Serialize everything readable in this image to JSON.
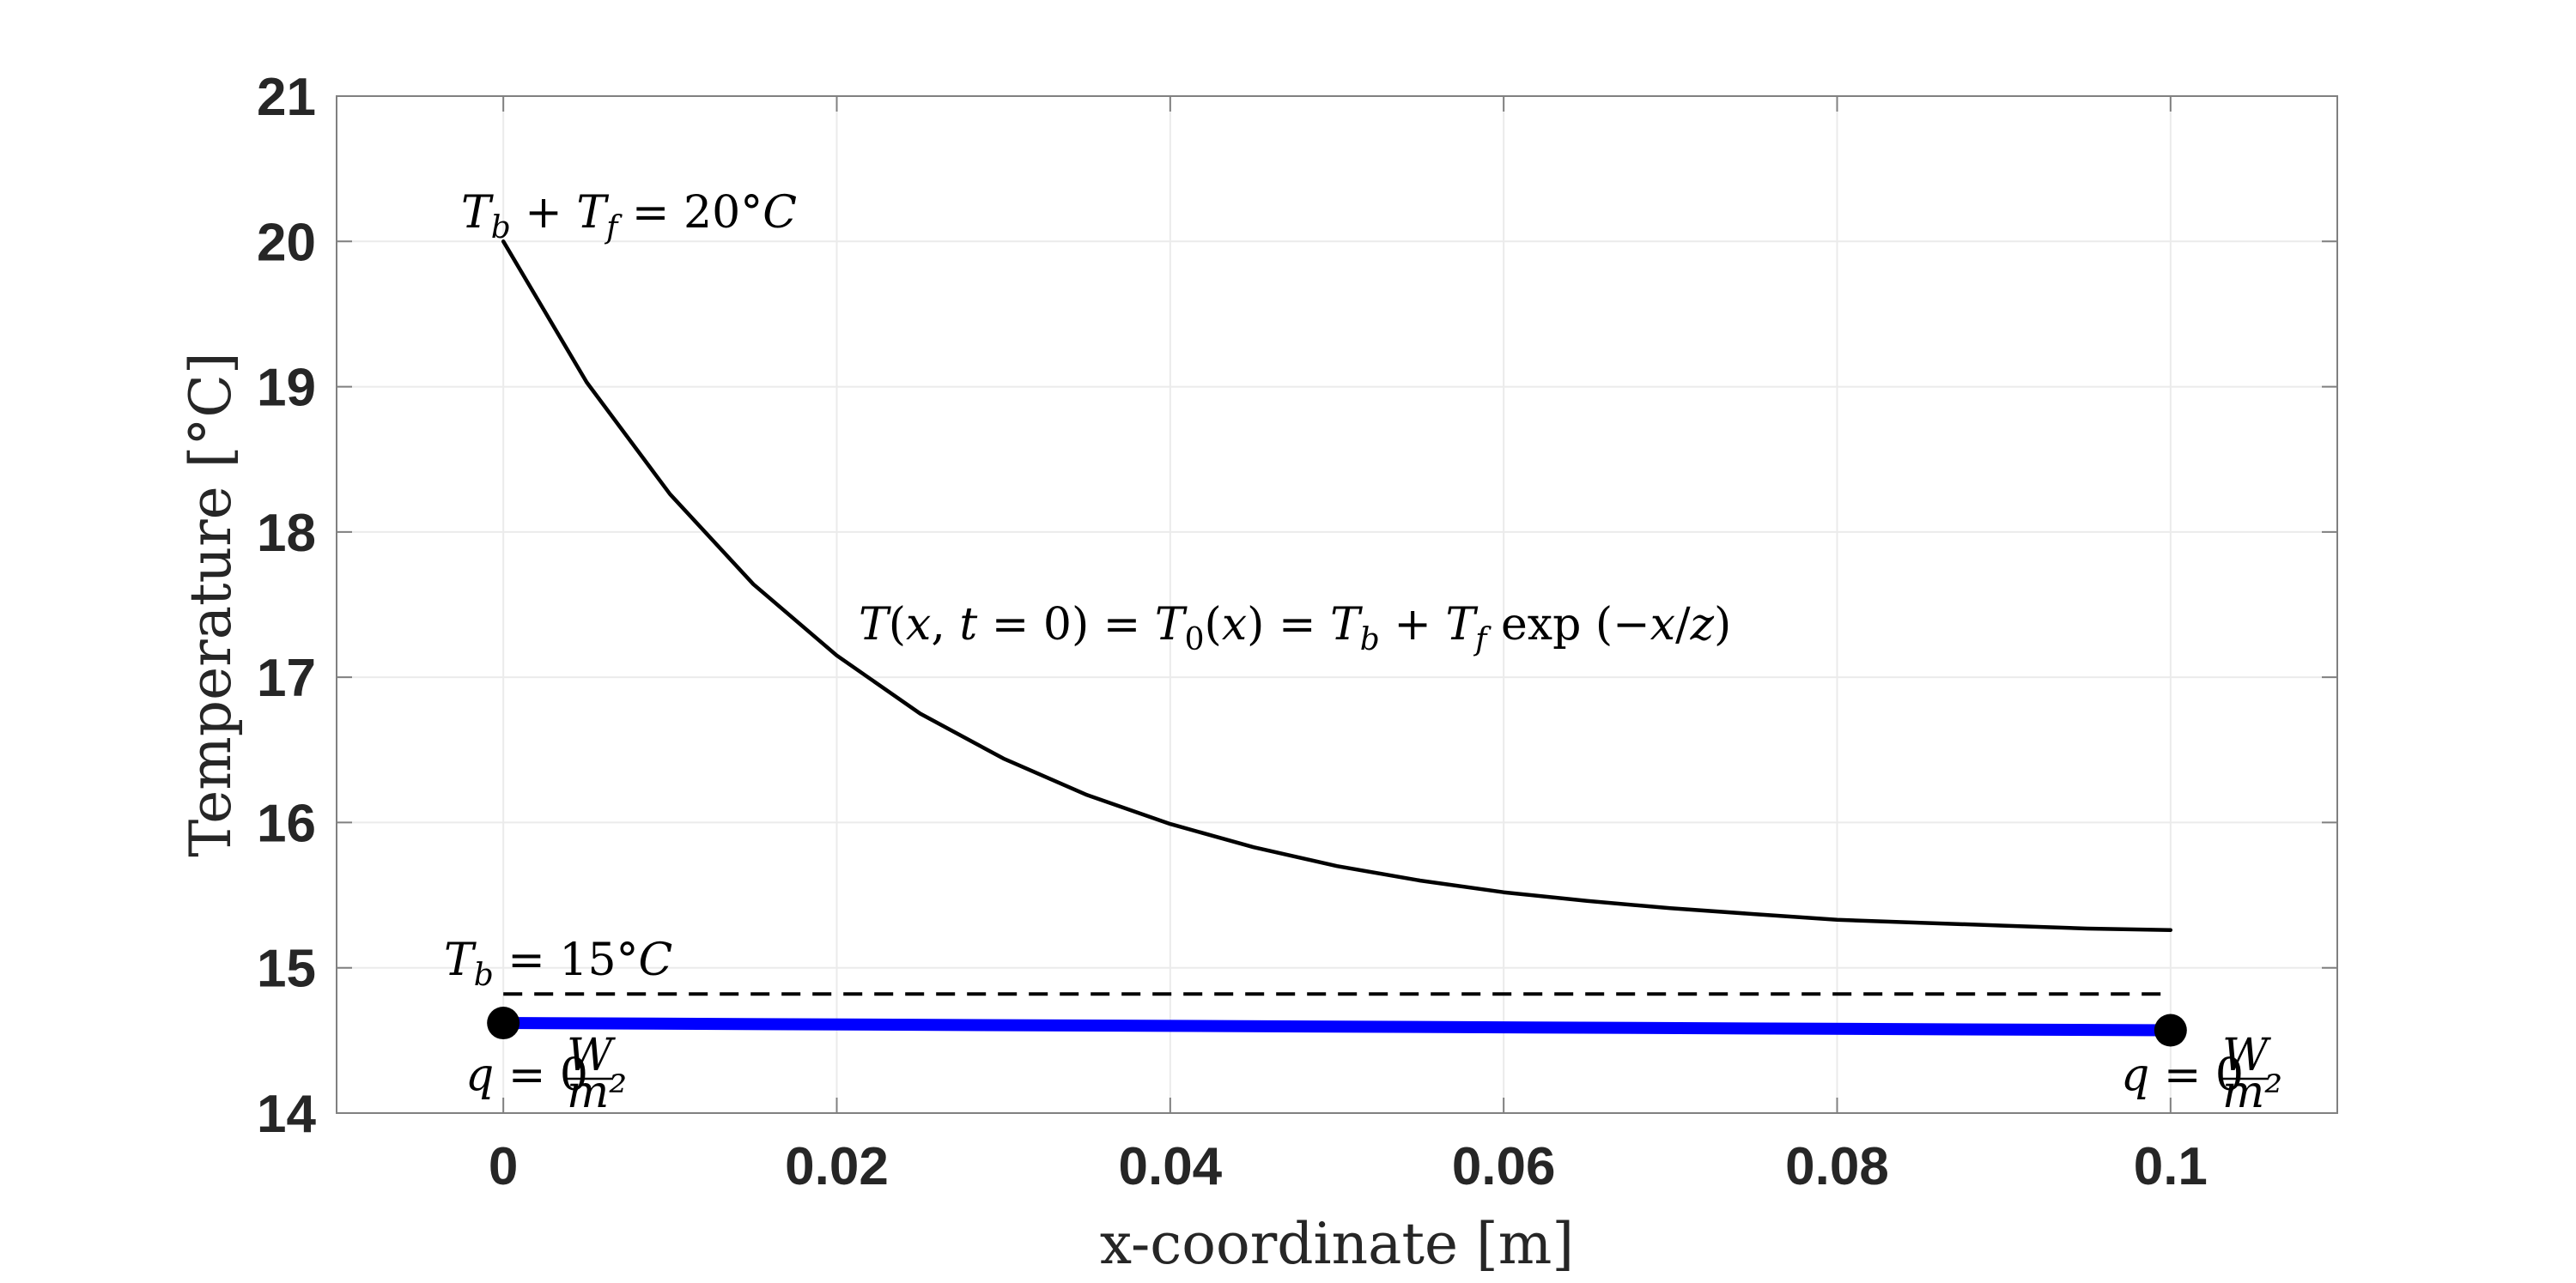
{
  "chart_data": {
    "type": "line",
    "title": "",
    "xlabel": "x-coordinate [m]",
    "ylabel": "Temperature [°C]",
    "xlim": [
      -0.01,
      0.11
    ],
    "ylim": [
      14,
      21
    ],
    "xticks": [
      0,
      0.02,
      0.04,
      0.06,
      0.08,
      0.1
    ],
    "xtick_labels": [
      "0",
      "0.02",
      "0.04",
      "0.06",
      "0.08",
      "0.1"
    ],
    "yticks": [
      14,
      15,
      16,
      17,
      18,
      19,
      20,
      21
    ],
    "ytick_labels": [
      "14",
      "15",
      "16",
      "17",
      "18",
      "19",
      "20",
      "21"
    ],
    "grid": true,
    "legend": "none",
    "series": [
      {
        "style": "solid",
        "color": "#000000",
        "x": [
          0,
          0.005,
          0.01,
          0.015,
          0.02,
          0.025,
          0.03,
          0.035,
          0.04,
          0.045,
          0.05,
          0.055,
          0.06,
          0.065,
          0.07,
          0.075,
          0.08,
          0.085,
          0.09,
          0.095,
          0.1
        ],
        "y": [
          20.0,
          19.03,
          18.26,
          17.64,
          17.15,
          16.75,
          16.44,
          16.19,
          15.99,
          15.83,
          15.7,
          15.6,
          15.52,
          15.46,
          15.41,
          15.37,
          15.33,
          15.31,
          15.29,
          15.27,
          15.26
        ]
      },
      {
        "style": "dashed",
        "color": "#000000",
        "x": [
          0,
          0.1
        ],
        "y": [
          14.82,
          14.82
        ]
      },
      {
        "style": "thick",
        "color": "#0000ff",
        "x": [
          0,
          0.1
        ],
        "y": [
          14.62,
          14.57
        ]
      }
    ],
    "markers": [
      {
        "x": 0,
        "y": 14.62,
        "color": "#000000"
      },
      {
        "x": 0.1,
        "y": 14.57,
        "color": "#000000"
      }
    ],
    "annotations": {
      "top": {
        "lhs_T": "T",
        "lhs_b": "b",
        "plus": " + ",
        "lhs_Tf": "T",
        "lhs_f": "f",
        "eq": " = ",
        "value": "20°",
        "unit": "C"
      },
      "curve": {
        "text_a": "T",
        "text_b": "(",
        "text_c": "x",
        "text_d": ", ",
        "text_e": "t",
        "text_f": " = 0) = ",
        "text_g": "T",
        "text_h": "0",
        "text_i": "(",
        "text_j": "x",
        "text_k": ") = ",
        "text_l": "T",
        "text_m": "b",
        "text_n": " + ",
        "text_o": "T",
        "text_p": "f",
        "text_q": " exp (−",
        "text_r": "x",
        "text_s": "/",
        "text_t": "z",
        "text_u": ")"
      },
      "base": {
        "lhs_T": "T",
        "lhs_b": "b",
        "eq": " = 15°",
        "unit": "C"
      },
      "left_flux": {
        "q": "q",
        "eq": " = 0",
        "num": "W",
        "den": "m²"
      },
      "right_flux": {
        "q": "q",
        "eq": " = 0",
        "num": "W",
        "den": "m²"
      }
    },
    "colors": {
      "axis": "#262626",
      "grid": "#ebebeb",
      "frame": "#808080"
    }
  }
}
